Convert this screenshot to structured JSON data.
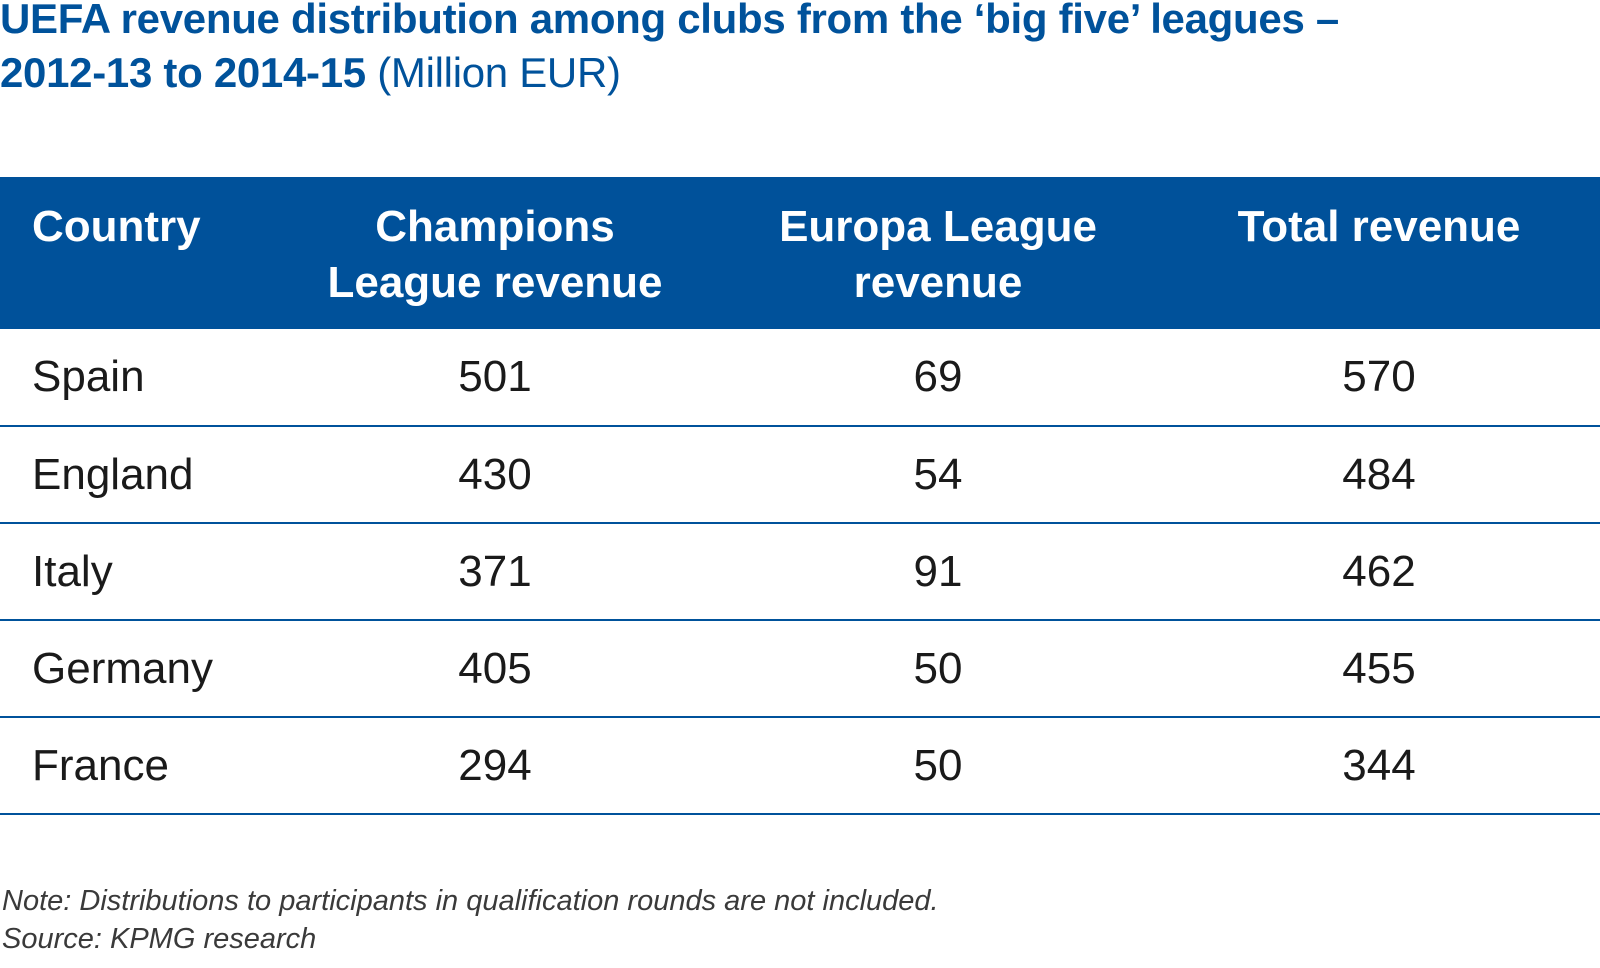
{
  "title": {
    "line1": "UEFA revenue distribution among clubs from the ‘big five’ leagues –",
    "line2": "2012-13 to 2014-15",
    "unit": "(Million EUR)"
  },
  "colors": {
    "header_bg": "#00519a",
    "title": "#00529b",
    "rule": "#00529b"
  },
  "chart_data": {
    "type": "table",
    "title": "UEFA revenue distribution among clubs from the ‘big five’ leagues – 2012-13 to 2014-15 (Million EUR)",
    "columns": [
      "Country",
      "Champions League revenue",
      "Europa League revenue",
      "Total revenue"
    ],
    "header_lines": [
      [
        "Country"
      ],
      [
        "Champions",
        "League revenue"
      ],
      [
        "Europa League",
        "revenue"
      ],
      [
        "Total revenue"
      ]
    ],
    "rows": [
      [
        "Spain",
        "501",
        "69",
        "570"
      ],
      [
        "England",
        "430",
        "54",
        "484"
      ],
      [
        "Italy",
        "371",
        "91",
        "462"
      ],
      [
        "Germany",
        "405",
        "50",
        "455"
      ],
      [
        "France",
        "294",
        "50",
        "344"
      ]
    ]
  },
  "notes": {
    "note": "Note: Distributions to participants in qualification rounds are not included.",
    "source": "Source: KPMG research"
  }
}
